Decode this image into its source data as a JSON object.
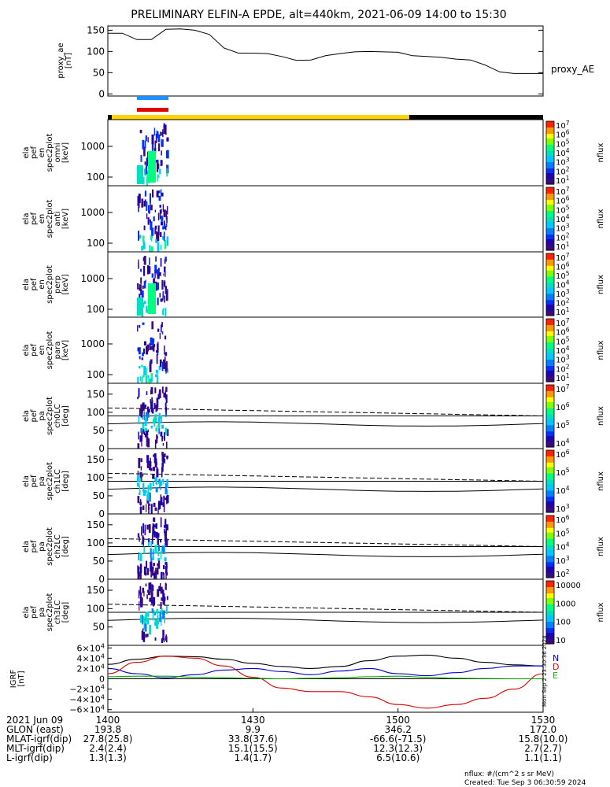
{
  "title": "PRELIMINARY ELFIN-A EPDE, alt=440km, 2021-06-09 14:00 to 15:30",
  "colors": {
    "frame": "#000000",
    "fast_bar": "#1e90ff",
    "sci_bar": "#e00000",
    "yellow_bar": "#ffd400",
    "black_bar": "#000000",
    "n_color": "#0000cc",
    "d_color": "#dd0000",
    "e_color": "#00bb00"
  },
  "chart_data": [
    {
      "id": "proxy_ae",
      "type": "line",
      "ylabel_lines": [
        "proxy_ae",
        "[nT]"
      ],
      "legend": "proxy_AE",
      "ylim": [
        -5,
        160
      ],
      "yticks": [
        "150",
        "100",
        "50",
        "0"
      ],
      "ytick_values": [
        150,
        100,
        50,
        0
      ],
      "x_minutes": [
        0,
        3,
        6,
        9,
        12,
        15,
        18,
        21,
        24,
        27,
        30,
        33,
        36,
        39,
        42,
        45,
        48,
        51,
        54,
        57,
        60,
        63,
        66,
        69,
        72,
        75,
        78,
        81,
        84,
        87,
        90
      ],
      "values": [
        143,
        143,
        128,
        128,
        152,
        153,
        150,
        140,
        108,
        96,
        96,
        95,
        88,
        79,
        80,
        90,
        95,
        99,
        100,
        99,
        98,
        90,
        88,
        86,
        82,
        80,
        68,
        52,
        48,
        48,
        48
      ]
    },
    {
      "id": "omni",
      "type": "heatmap",
      "ylabel_lines": [
        "ela",
        "pef",
        "en",
        "spec2plot",
        "omni",
        "[keV]"
      ],
      "yscale": "log",
      "yticks": [
        "1000",
        "100"
      ],
      "colorbar_label": "nflux",
      "colorbar_ticks": [
        "10^7",
        "10^6",
        "10^5",
        "10^4",
        "10^3",
        "10^2",
        "10^1"
      ]
    },
    {
      "id": "anti",
      "type": "heatmap",
      "ylabel_lines": [
        "ela",
        "pef",
        "en",
        "spec2plot",
        "anti",
        "[keV]"
      ],
      "yscale": "log",
      "yticks": [
        "1000",
        "100"
      ],
      "colorbar_label": "nflux",
      "colorbar_ticks": [
        "10^7",
        "10^6",
        "10^5",
        "10^4",
        "10^3",
        "10^2",
        "10^1"
      ]
    },
    {
      "id": "perp",
      "type": "heatmap",
      "ylabel_lines": [
        "ela",
        "pef",
        "en",
        "spec2plot",
        "perp",
        "[keV]"
      ],
      "yscale": "log",
      "yticks": [
        "1000",
        "100"
      ],
      "colorbar_label": "nflux",
      "colorbar_ticks": [
        "10^7",
        "10^6",
        "10^5",
        "10^4",
        "10^3",
        "10^2",
        "10^1"
      ]
    },
    {
      "id": "para",
      "type": "heatmap",
      "ylabel_lines": [
        "ela",
        "pef",
        "en",
        "spec2plot",
        "para",
        "[keV]"
      ],
      "yscale": "log",
      "yticks": [
        "1000",
        "100"
      ],
      "colorbar_label": "nflux",
      "colorbar_ticks": [
        "10^7",
        "10^6",
        "10^5",
        "10^4",
        "10^3",
        "10^2",
        "10^1"
      ]
    },
    {
      "id": "ch0LC",
      "type": "heatmap",
      "ylabel_lines": [
        "ela",
        "pef",
        "pa",
        "spec2plot",
        "ch0LC",
        "[deg]"
      ],
      "ylim": [
        0,
        180
      ],
      "yticks": [
        "150",
        "100",
        "50",
        "0"
      ],
      "colorbar_label": "nflux",
      "colorbar_ticks": [
        "10^7",
        "10^6",
        "10^5",
        "10^4"
      ]
    },
    {
      "id": "ch1LC",
      "type": "heatmap",
      "ylabel_lines": [
        "ela",
        "pef",
        "pa",
        "spec2plot",
        "ch1LC",
        "[deg]"
      ],
      "ylim": [
        0,
        180
      ],
      "yticks": [
        "150",
        "100",
        "50",
        "0"
      ],
      "colorbar_label": "nflux",
      "colorbar_ticks": [
        "10^6",
        "10^5",
        "10^4",
        "10^3"
      ]
    },
    {
      "id": "ch2LC",
      "type": "heatmap",
      "ylabel_lines": [
        "ela",
        "pef",
        "pa",
        "spec2plot",
        "ch2LC",
        "[deg]"
      ],
      "ylim": [
        0,
        180
      ],
      "yticks": [
        "150",
        "100",
        "50",
        "0"
      ],
      "colorbar_label": "nflux",
      "colorbar_ticks": [
        "10^6",
        "10^5",
        "10^4",
        "10^3",
        "10^2"
      ]
    },
    {
      "id": "ch3LC",
      "type": "heatmap",
      "ylabel_lines": [
        "ela",
        "pef",
        "pa",
        "spec2plot",
        "ch3LC",
        "[deg]"
      ],
      "ylim": [
        0,
        180
      ],
      "yticks": [
        "150",
        "100",
        "50"
      ],
      "colorbar_label": "nflux",
      "colorbar_ticks": [
        "10000",
        "1000",
        "100",
        "10"
      ]
    },
    {
      "id": "IGRF",
      "type": "line",
      "ylabel_lines": [
        "IGRF",
        "[nT]"
      ],
      "ylim": [
        -65000,
        65000
      ],
      "yticks": [
        "6×10^4",
        "4×10^4",
        "2×10^4",
        "0",
        "−2×10^4",
        "−4×10^4",
        "−6×10^4"
      ],
      "side_labels": [
        "N",
        "D",
        "E"
      ],
      "side_stamp": "Mon Sep  2 23:30:36 2024",
      "x_minutes": [
        0,
        6,
        12,
        18,
        24,
        30,
        36,
        42,
        48,
        54,
        60,
        66,
        72,
        78,
        84,
        90
      ],
      "series": [
        {
          "id": "black",
          "values": [
            28000,
            38000,
            44000,
            43000,
            38000,
            30000,
            24000,
            20000,
            24000,
            35000,
            44000,
            46000,
            40000,
            32000,
            27000,
            25000
          ]
        },
        {
          "id": "blue",
          "values": [
            20000,
            10000,
            2000,
            8000,
            17000,
            20000,
            14000,
            8000,
            15000,
            20000,
            10000,
            6000,
            12000,
            20000,
            25000,
            25000
          ]
        },
        {
          "id": "red",
          "values": [
            10000,
            32000,
            44000,
            40000,
            25000,
            3000,
            -18000,
            -25000,
            -25000,
            -35000,
            -50000,
            -57000,
            -50000,
            -38000,
            -20000,
            10000
          ]
        },
        {
          "id": "green",
          "values": [
            4000,
            5000,
            5000,
            3000,
            2000,
            1000,
            0,
            1000,
            2000,
            4000,
            5000,
            3000,
            1000,
            500,
            0,
            0
          ]
        }
      ]
    }
  ],
  "time_axis": {
    "row_labels": [
      "2021 Jun 09",
      "GLON (east)",
      "MLAT-igrf(dip)",
      "MLT-igrf(dip)",
      "L-igrf(dip)"
    ],
    "columns": [
      {
        "time": "1400",
        "values": [
          "193.8",
          "27.8(25.8)",
          "2.4(2.4)",
          "1.3(1.3)"
        ]
      },
      {
        "time": "1430",
        "values": [
          "9.9",
          "33.8(37.6)",
          "15.1(15.5)",
          "1.4(1.7)"
        ]
      },
      {
        "time": "1500",
        "values": [
          "346.2",
          "-66.6(-71.5)",
          "12.3(12.3)",
          "6.5(10.6)"
        ]
      },
      {
        "time": "1530",
        "values": [
          "172.0",
          "15.8(10.0)",
          "2.7(2.7)",
          "1.1(1.1)"
        ]
      }
    ]
  },
  "footer": {
    "units_note": "nflux: #/(cm^2 s sr MeV)",
    "created": "Created: Tue Sep  3 06:30:59 2024"
  }
}
